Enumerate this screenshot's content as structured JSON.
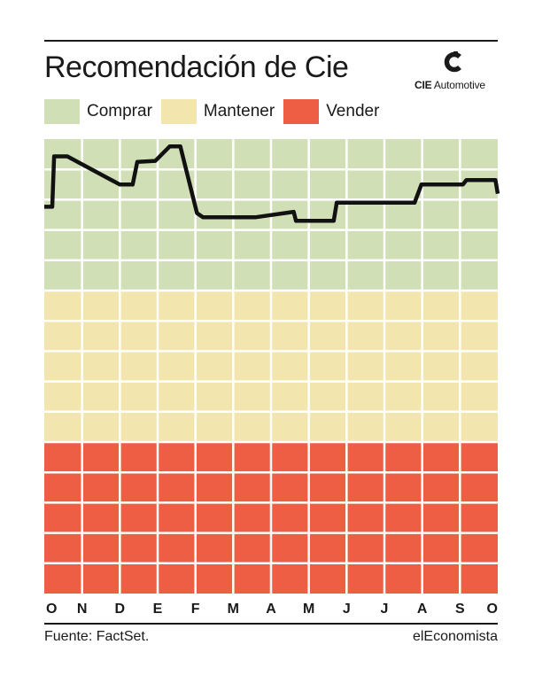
{
  "header": {
    "title": "Recomendación de Cie",
    "logo_text_bold": "CIE",
    "logo_text_rest": " Automotive"
  },
  "legend": [
    {
      "label": "Comprar",
      "color": "#d1dfb6"
    },
    {
      "label": "Mantener",
      "color": "#f2e5ad"
    },
    {
      "label": "Vender",
      "color": "#ee5e45"
    }
  ],
  "footer": {
    "source": "Fuente: FactSet.",
    "brand": "elEconomista"
  },
  "chart_data": {
    "type": "line",
    "title": "Recomendación de Cie",
    "xlabel": "",
    "ylabel": "",
    "categories": [
      "O",
      "N",
      "D",
      "E",
      "F",
      "M",
      "A",
      "M",
      "J",
      "J",
      "A",
      "S",
      "O"
    ],
    "zones": [
      {
        "label": "Comprar",
        "from": 0.667,
        "to": 1.0,
        "color": "#d1dfb6"
      },
      {
        "label": "Mantener",
        "from": 0.333,
        "to": 0.667,
        "color": "#f2e5ad"
      },
      {
        "label": "Vender",
        "from": 0.0,
        "to": 0.333,
        "color": "#ee5e45"
      }
    ],
    "ylim": [
      0,
      1
    ],
    "grid": true,
    "line_color": "#111111",
    "series": [
      {
        "x": [
          0.0,
          0.21,
          0.26,
          0.61,
          2.0,
          2.04,
          2.34,
          2.46,
          2.94,
          3.32,
          3.43,
          3.6,
          4.04,
          4.2,
          5.51,
          5.6,
          6.6,
          6.66,
          7.66,
          7.74,
          7.98,
          8.02,
          8.37,
          8.56,
          8.61,
          9.8,
          9.98,
          10.85,
          11.08,
          11.17,
          11.94,
          12.0
        ],
        "y": [
          0.851,
          0.851,
          0.962,
          0.962,
          0.9,
          0.9,
          0.9,
          0.95,
          0.952,
          0.984,
          0.984,
          0.984,
          0.837,
          0.828,
          0.828,
          0.828,
          0.84,
          0.82,
          0.82,
          0.86,
          0.86,
          0.86,
          0.86,
          0.86,
          0.86,
          0.86,
          0.9,
          0.9,
          0.9,
          0.91,
          0.91,
          0.88
        ]
      }
    ]
  }
}
